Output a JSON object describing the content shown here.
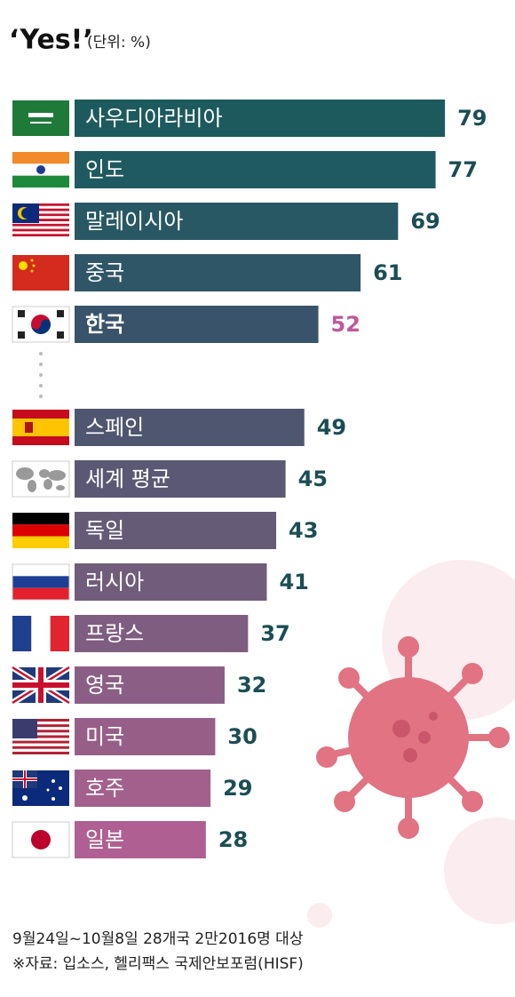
{
  "chart_data": {
    "type": "bar",
    "orientation": "horizontal",
    "title": "‘Yes!’",
    "subtitle": "(단위: %)",
    "categories": [
      "사우디아라비아",
      "인도",
      "말레이시아",
      "중국",
      "한국",
      "스페인",
      "세계 평균",
      "독일",
      "러시아",
      "프랑스",
      "영국",
      "미국",
      "호주",
      "일본"
    ],
    "values": [
      79,
      77,
      69,
      61,
      52,
      49,
      45,
      43,
      41,
      37,
      32,
      30,
      29,
      28
    ],
    "colors": [
      "#1d5a5d",
      "#1f5a60",
      "#285863",
      "#2f5666",
      "#39536a",
      "#4e5670",
      "#5a5873",
      "#665b77",
      "#715d7b",
      "#7e5e80",
      "#8b5f85",
      "#975f88",
      "#a4608d",
      "#b05f92"
    ],
    "value_label_color": "#1b4d55",
    "highlight_index": 4,
    "highlight_color": "#c0589a",
    "notes": [
      "9월24일~10월8일 28개국 2만2016명 대상",
      "※자료: 입소스, 헬리팩스 국제안보포럼(HISF)"
    ]
  }
}
